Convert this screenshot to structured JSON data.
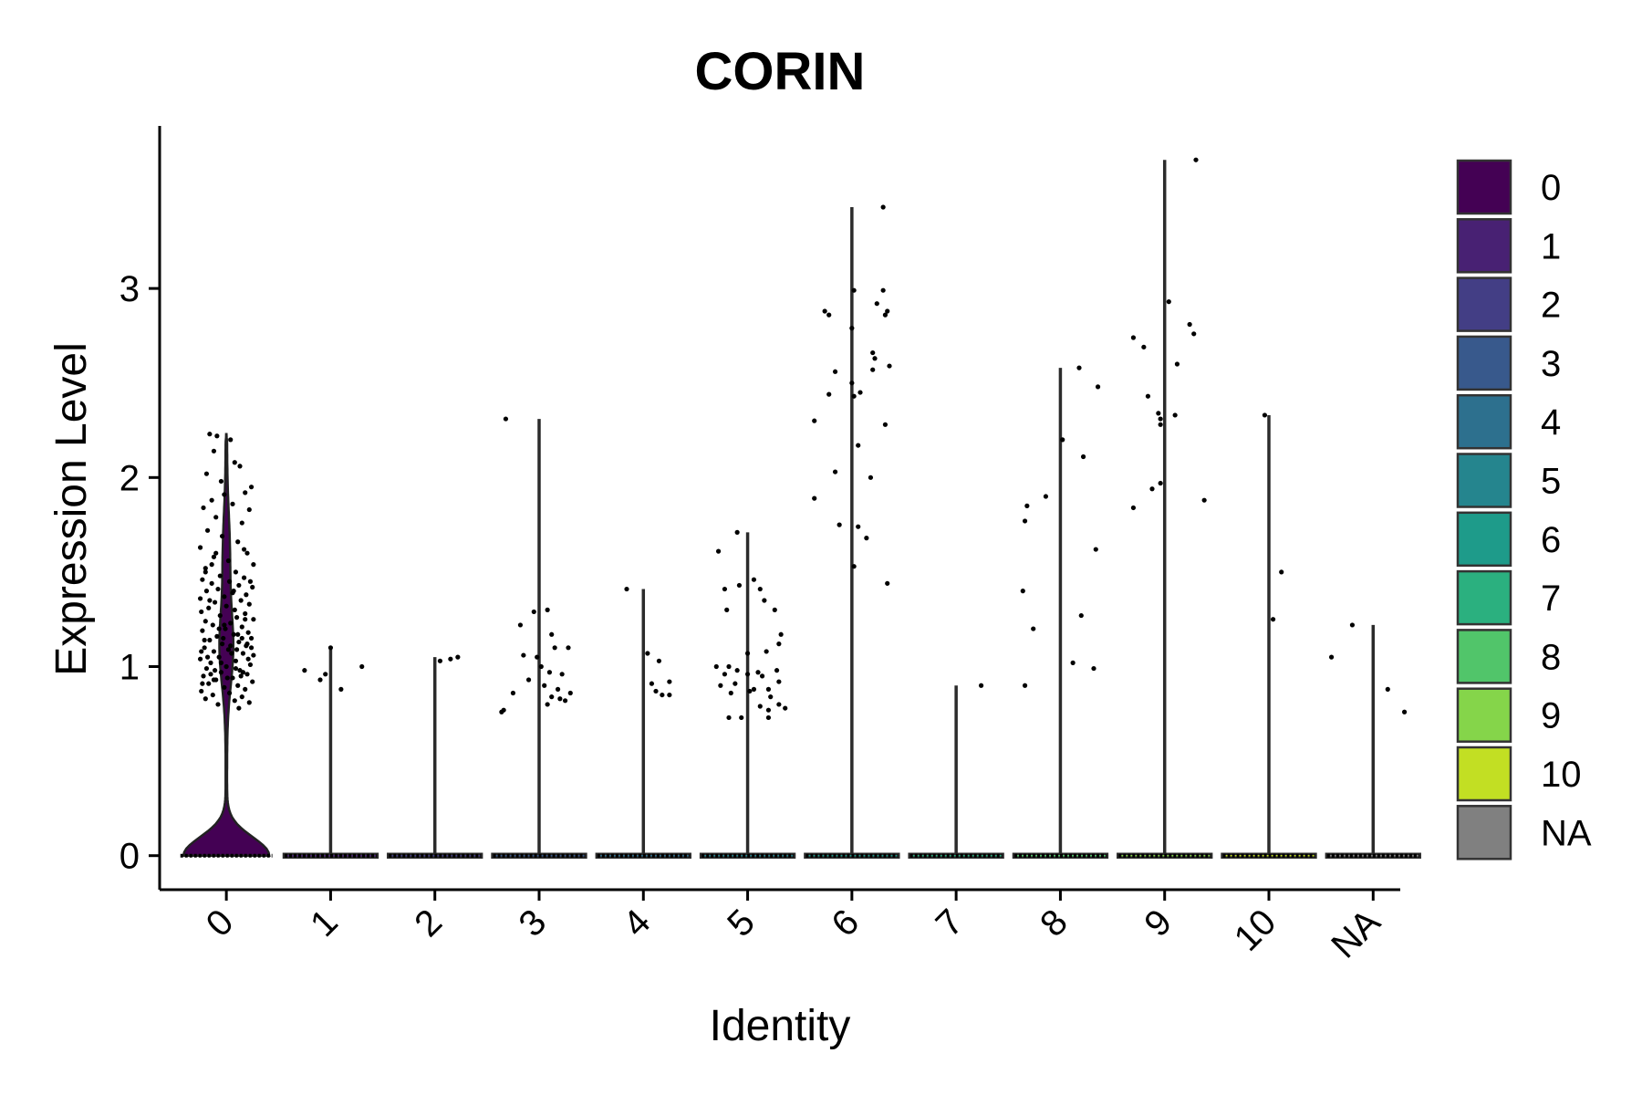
{
  "chart_data": {
    "type": "violin",
    "title": "CORIN",
    "xlabel": "Identity",
    "ylabel": "Expression Level",
    "ylim": [
      -0.18,
      3.85
    ],
    "yticks": [
      0,
      1,
      2,
      3
    ],
    "legend_placement": "right",
    "grid": false,
    "categories": [
      "0",
      "1",
      "2",
      "3",
      "4",
      "5",
      "6",
      "7",
      "8",
      "9",
      "10",
      "NA"
    ],
    "colors": [
      "#440154",
      "#482173",
      "#433E85",
      "#38598C",
      "#2D708E",
      "#25858E",
      "#1E9B8A",
      "#2BB07F",
      "#51C56A",
      "#85D54A",
      "#C2DF23",
      "#808080"
    ],
    "series": [
      {
        "name": "0",
        "max": 2.23,
        "points": [
          [
            -0.16,
            2.23
          ],
          [
            -0.09,
            2.22
          ],
          [
            0.04,
            2.2
          ],
          [
            0.13,
            2.06
          ],
          [
            -0.12,
            2.14
          ],
          [
            0.08,
            2.08
          ],
          [
            -0.19,
            2.02
          ],
          [
            -0.05,
            1.98
          ],
          [
            0.24,
            1.95
          ],
          [
            0.18,
            1.92
          ],
          [
            -0.02,
            1.91
          ],
          [
            -0.14,
            1.88
          ],
          [
            0.06,
            1.86
          ],
          [
            -0.22,
            1.84
          ],
          [
            0.22,
            1.83
          ],
          [
            -0.1,
            1.79
          ],
          [
            0.15,
            1.76
          ],
          [
            -0.18,
            1.72
          ],
          [
            -0.04,
            1.69
          ],
          [
            0.11,
            1.66
          ],
          [
            -0.25,
            1.63
          ],
          [
            0.2,
            1.6
          ],
          [
            -0.12,
            1.58
          ],
          [
            0.02,
            1.56
          ],
          [
            0.26,
            1.54
          ],
          [
            -0.2,
            1.52
          ],
          [
            0.09,
            1.5
          ],
          [
            -0.06,
            1.48
          ],
          [
            0.17,
            1.47
          ],
          [
            -0.23,
            1.46
          ],
          [
            0.03,
            1.45
          ],
          [
            -0.14,
            1.44
          ],
          [
            0.12,
            1.43
          ],
          [
            0.25,
            1.42
          ],
          [
            -0.08,
            1.41
          ],
          [
            -0.19,
            1.4
          ],
          [
            0.06,
            1.39
          ],
          [
            0.19,
            1.38
          ],
          [
            -0.02,
            1.37
          ],
          [
            -0.25,
            1.36
          ],
          [
            0.14,
            1.35
          ],
          [
            -0.11,
            1.34
          ],
          [
            0.22,
            1.33
          ],
          [
            0.0,
            1.32
          ],
          [
            -0.17,
            1.31
          ],
          [
            0.08,
            1.3
          ],
          [
            -0.24,
            1.29
          ],
          [
            0.18,
            1.28
          ],
          [
            -0.06,
            1.27
          ],
          [
            0.1,
            1.26
          ],
          [
            0.26,
            1.25
          ],
          [
            -0.2,
            1.24
          ],
          [
            0.04,
            1.23
          ],
          [
            -0.13,
            1.22
          ],
          [
            0.15,
            1.21
          ],
          [
            -0.01,
            1.2
          ],
          [
            -0.23,
            1.19
          ],
          [
            0.21,
            1.18
          ],
          [
            0.07,
            1.17
          ],
          [
            -0.09,
            1.16
          ],
          [
            0.24,
            1.15
          ],
          [
            -0.16,
            1.14
          ],
          [
            0.12,
            1.13
          ],
          [
            -0.04,
            1.12
          ],
          [
            0.19,
            1.11
          ],
          [
            -0.21,
            1.1
          ],
          [
            0.02,
            1.09
          ],
          [
            -0.12,
            1.08
          ],
          [
            0.16,
            1.07
          ],
          [
            0.26,
            1.06
          ],
          [
            -0.07,
            1.05
          ],
          [
            -0.25,
            1.04
          ],
          [
            0.09,
            1.03
          ],
          [
            -0.15,
            1.02
          ],
          [
            0.23,
            1.01
          ],
          [
            0.0,
            1.0
          ],
          [
            -0.19,
            0.99
          ],
          [
            0.13,
            0.98
          ],
          [
            -0.05,
            0.97
          ],
          [
            0.2,
            0.96
          ],
          [
            -0.22,
            0.95
          ],
          [
            0.06,
            0.94
          ],
          [
            -0.1,
            0.93
          ],
          [
            0.25,
            0.92
          ],
          [
            -0.17,
            0.91
          ],
          [
            0.11,
            0.9
          ],
          [
            -0.02,
            0.89
          ],
          [
            0.18,
            0.88
          ],
          [
            -0.24,
            0.87
          ],
          [
            0.03,
            0.86
          ],
          [
            -0.13,
            0.85
          ],
          [
            0.15,
            0.84
          ],
          [
            -0.2,
            0.83
          ],
          [
            0.08,
            0.82
          ],
          [
            0.22,
            0.81
          ],
          [
            -0.08,
            0.8
          ],
          [
            0.12,
            0.78
          ],
          [
            -0.14,
            1.54
          ],
          [
            0.17,
            1.62
          ],
          [
            -0.21,
            1.14
          ],
          [
            0.1,
            1.09
          ],
          [
            -0.18,
            1.05
          ],
          [
            0.2,
            1.12
          ],
          [
            -0.03,
            1.15
          ],
          [
            0.05,
            1.07
          ],
          [
            -0.11,
            0.98
          ],
          [
            0.14,
            0.95
          ],
          [
            -0.23,
            0.91
          ],
          [
            0.01,
            0.94
          ],
          [
            0.24,
            1.1
          ],
          [
            -0.07,
            1.2
          ],
          [
            0.18,
            1.25
          ],
          [
            -0.16,
            1.35
          ],
          [
            0.07,
            1.4
          ],
          [
            -0.2,
            1.5
          ],
          [
            0.23,
            1.45
          ],
          [
            -0.1,
            1.6
          ],
          [
            0.15,
            1.15
          ],
          [
            -0.05,
            1.02
          ],
          [
            0.09,
            0.99
          ],
          [
            -0.15,
            0.96
          ],
          [
            0.21,
            1.04
          ],
          [
            -0.24,
            1.08
          ],
          [
            0.04,
            1.11
          ],
          [
            0.16,
            0.97
          ],
          [
            -0.12,
            0.93
          ],
          [
            0.11,
            1.17
          ],
          [
            -0.02,
            1.22
          ]
        ]
      },
      {
        "name": "1",
        "max": 1.1,
        "points": [
          [
            -0.25,
            0.98
          ],
          [
            -0.1,
            0.93
          ],
          [
            0.0,
            1.1
          ],
          [
            0.1,
            0.88
          ],
          [
            0.3,
            1.0
          ],
          [
            -0.05,
            0.96
          ]
        ]
      },
      {
        "name": "2",
        "max": 1.05,
        "points": [
          [
            0.05,
            1.03
          ],
          [
            0.15,
            1.04
          ],
          [
            0.22,
            1.05
          ]
        ]
      },
      {
        "name": "3",
        "max": 2.31,
        "points": [
          [
            -0.32,
            2.31
          ],
          [
            -0.18,
            1.22
          ],
          [
            -0.05,
            1.29
          ],
          [
            0.08,
            1.3
          ],
          [
            0.12,
            1.17
          ],
          [
            -0.15,
            1.06
          ],
          [
            -0.02,
            1.05
          ],
          [
            0.15,
            1.1
          ],
          [
            0.28,
            1.1
          ],
          [
            0.02,
            1.0
          ],
          [
            0.1,
            0.97
          ],
          [
            0.22,
            0.96
          ],
          [
            -0.1,
            0.93
          ],
          [
            0.05,
            0.9
          ],
          [
            0.18,
            0.88
          ],
          [
            0.3,
            0.86
          ],
          [
            -0.25,
            0.86
          ],
          [
            0.12,
            0.84
          ],
          [
            0.25,
            0.82
          ],
          [
            -0.34,
            0.77
          ],
          [
            0.08,
            0.8
          ],
          [
            -0.36,
            0.76
          ],
          [
            0.2,
            0.83
          ]
        ]
      },
      {
        "name": "4",
        "max": 1.41,
        "points": [
          [
            -0.16,
            1.41
          ],
          [
            0.04,
            1.07
          ],
          [
            0.15,
            1.03
          ],
          [
            0.08,
            0.91
          ],
          [
            0.25,
            0.92
          ],
          [
            0.12,
            0.87
          ],
          [
            0.18,
            0.85
          ],
          [
            0.25,
            0.85
          ]
        ]
      },
      {
        "name": "5",
        "max": 1.71,
        "points": [
          [
            -0.28,
            1.61
          ],
          [
            -0.1,
            1.71
          ],
          [
            -0.22,
            1.41
          ],
          [
            -0.08,
            1.43
          ],
          [
            0.06,
            1.46
          ],
          [
            0.12,
            1.41
          ],
          [
            0.16,
            1.35
          ],
          [
            0.26,
            1.3
          ],
          [
            -0.2,
            1.3
          ],
          [
            0.32,
            1.17
          ],
          [
            0.3,
            1.12
          ],
          [
            0.18,
            1.08
          ],
          [
            0.0,
            1.07
          ],
          [
            -0.3,
            1.0
          ],
          [
            -0.18,
            1.0
          ],
          [
            -0.1,
            0.98
          ],
          [
            0.1,
            0.97
          ],
          [
            0.28,
            0.98
          ],
          [
            -0.22,
            0.96
          ],
          [
            0.0,
            0.96
          ],
          [
            0.14,
            0.95
          ],
          [
            0.3,
            0.92
          ],
          [
            -0.26,
            0.9
          ],
          [
            -0.12,
            0.91
          ],
          [
            0.06,
            0.88
          ],
          [
            0.2,
            0.88
          ],
          [
            -0.16,
            0.86
          ],
          [
            0.02,
            0.87
          ],
          [
            0.22,
            0.84
          ],
          [
            0.3,
            0.8
          ],
          [
            0.12,
            0.79
          ],
          [
            0.2,
            0.77
          ],
          [
            -0.18,
            0.73
          ],
          [
            -0.06,
            0.73
          ],
          [
            0.2,
            0.73
          ],
          [
            0.36,
            0.78
          ]
        ]
      },
      {
        "name": "6",
        "max": 3.43,
        "points": [
          [
            -0.26,
            2.88
          ],
          [
            -0.22,
            2.86
          ],
          [
            0.02,
            2.99
          ],
          [
            0.3,
            2.99
          ],
          [
            0.24,
            2.92
          ],
          [
            0.34,
            2.88
          ],
          [
            0.32,
            2.86
          ],
          [
            0.0,
            2.79
          ],
          [
            0.2,
            2.66
          ],
          [
            0.22,
            2.63
          ],
          [
            -0.16,
            2.56
          ],
          [
            0.36,
            2.59
          ],
          [
            0.2,
            2.57
          ],
          [
            0.0,
            2.5
          ],
          [
            0.08,
            2.45
          ],
          [
            -0.22,
            2.44
          ],
          [
            0.02,
            2.43
          ],
          [
            -0.36,
            2.3
          ],
          [
            0.32,
            2.28
          ],
          [
            0.06,
            2.17
          ],
          [
            -0.16,
            2.03
          ],
          [
            0.18,
            2.0
          ],
          [
            -0.36,
            1.89
          ],
          [
            -0.12,
            1.75
          ],
          [
            0.06,
            1.74
          ],
          [
            0.14,
            1.68
          ],
          [
            0.02,
            1.53
          ],
          [
            0.34,
            1.44
          ],
          [
            0.3,
            3.43
          ]
        ]
      },
      {
        "name": "7",
        "max": 0.9,
        "points": [
          [
            0.24,
            0.9
          ]
        ]
      },
      {
        "name": "8",
        "max": 2.58,
        "points": [
          [
            -0.14,
            1.9
          ],
          [
            -0.34,
            1.77
          ],
          [
            -0.32,
            1.85
          ],
          [
            0.36,
            2.48
          ],
          [
            0.18,
            2.58
          ],
          [
            0.02,
            2.2
          ],
          [
            0.22,
            2.11
          ],
          [
            -0.36,
            1.4
          ],
          [
            -0.26,
            1.2
          ],
          [
            0.34,
            1.62
          ],
          [
            0.2,
            1.27
          ],
          [
            0.12,
            1.02
          ],
          [
            0.32,
            0.99
          ],
          [
            -0.34,
            0.9
          ]
        ]
      },
      {
        "name": "9",
        "max": 3.68,
        "points": [
          [
            0.3,
            3.68
          ],
          [
            -0.3,
            2.74
          ],
          [
            -0.2,
            2.69
          ],
          [
            0.04,
            2.93
          ],
          [
            0.24,
            2.81
          ],
          [
            0.28,
            2.76
          ],
          [
            0.12,
            2.6
          ],
          [
            -0.16,
            2.43
          ],
          [
            -0.06,
            2.34
          ],
          [
            -0.04,
            2.31
          ],
          [
            0.1,
            2.33
          ],
          [
            -0.04,
            2.28
          ],
          [
            -0.12,
            1.94
          ],
          [
            -0.04,
            1.97
          ],
          [
            -0.3,
            1.84
          ],
          [
            0.38,
            1.88
          ]
        ]
      },
      {
        "name": "10",
        "max": 2.33,
        "points": [
          [
            -0.04,
            2.33
          ],
          [
            0.12,
            1.5
          ],
          [
            0.04,
            1.25
          ]
        ]
      },
      {
        "name": "NA",
        "max": 1.22,
        "points": [
          [
            -0.4,
            1.05
          ],
          [
            -0.2,
            1.22
          ],
          [
            0.14,
            0.88
          ],
          [
            0.3,
            0.76
          ]
        ]
      }
    ]
  }
}
